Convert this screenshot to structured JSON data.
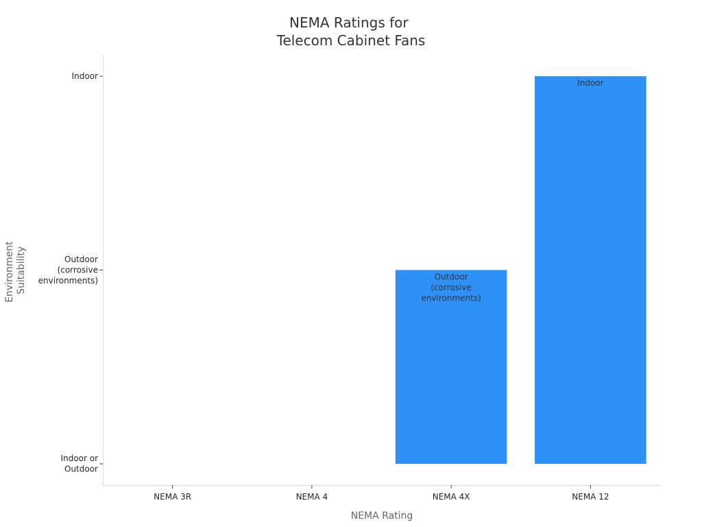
{
  "chart_data": {
    "type": "bar",
    "title": [
      "NEMA Ratings for",
      "Telecom Cabinet Fans"
    ],
    "xlabel": "NEMA Rating",
    "ylabel": [
      "Environment",
      "Suitability"
    ],
    "categories": [
      "NEMA 3R",
      "NEMA 4",
      "NEMA 4X",
      "NEMA 12"
    ],
    "y_categories": [
      [
        "Indoor or",
        "Outdoor"
      ],
      [
        "Outdoor",
        "(corrosive",
        "environments)"
      ],
      [
        "Indoor"
      ]
    ],
    "values": [
      0,
      0,
      1,
      2
    ],
    "data_labels": [
      [],
      [],
      [
        "Outdoor",
        "(corrosive",
        "environments)"
      ],
      [
        "Indoor"
      ]
    ],
    "ylim": [
      -0.11,
      2.11
    ],
    "bar_color": "#2E91F8",
    "axis_color": "#d9d9d9",
    "grid": false,
    "legend": "none"
  }
}
